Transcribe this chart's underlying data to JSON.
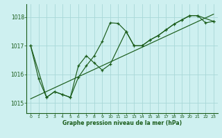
{
  "xlabel": "Graphe pression niveau de la mer (hPa)",
  "bg_color": "#cef0f0",
  "grid_color": "#a8d8d8",
  "line_color": "#1a5c1a",
  "text_color": "#1a5c1a",
  "xlim": [
    -0.5,
    23.5
  ],
  "ylim": [
    1014.65,
    1018.45
  ],
  "yticks": [
    1015,
    1016,
    1017,
    1018
  ],
  "xticks": [
    0,
    1,
    2,
    3,
    4,
    5,
    6,
    7,
    8,
    9,
    10,
    11,
    12,
    13,
    14,
    15,
    16,
    17,
    18,
    19,
    20,
    21,
    22,
    23
  ],
  "series1_x": [
    0,
    1,
    2,
    3,
    4,
    5,
    6,
    7,
    8,
    9,
    10,
    11,
    12,
    13,
    14,
    15,
    16,
    17,
    18,
    19,
    20,
    21,
    22,
    23
  ],
  "series1_y": [
    1017.0,
    1015.85,
    1015.2,
    1015.4,
    1015.3,
    1015.2,
    1015.9,
    1016.3,
    1016.65,
    1017.15,
    1017.8,
    1017.78,
    1017.5,
    1017.0,
    1017.0,
    1017.2,
    1017.35,
    1017.55,
    1017.75,
    1017.9,
    1018.05,
    1018.05,
    1017.8,
    1017.85
  ],
  "series2_x": [
    0,
    2,
    3,
    4,
    5,
    6,
    7,
    8,
    9,
    10,
    12,
    13,
    14,
    15,
    16,
    17,
    18,
    19,
    20,
    21,
    23
  ],
  "series2_y": [
    1017.0,
    1015.2,
    1015.4,
    1015.3,
    1015.2,
    1016.3,
    1016.65,
    1016.4,
    1016.15,
    1016.35,
    1017.5,
    1017.0,
    1017.0,
    1017.2,
    1017.35,
    1017.55,
    1017.75,
    1017.9,
    1018.05,
    1018.05,
    1017.85
  ],
  "trend_x": [
    0,
    23
  ],
  "trend_y": [
    1015.15,
    1018.1
  ],
  "spine_color": "#1a5c1a"
}
